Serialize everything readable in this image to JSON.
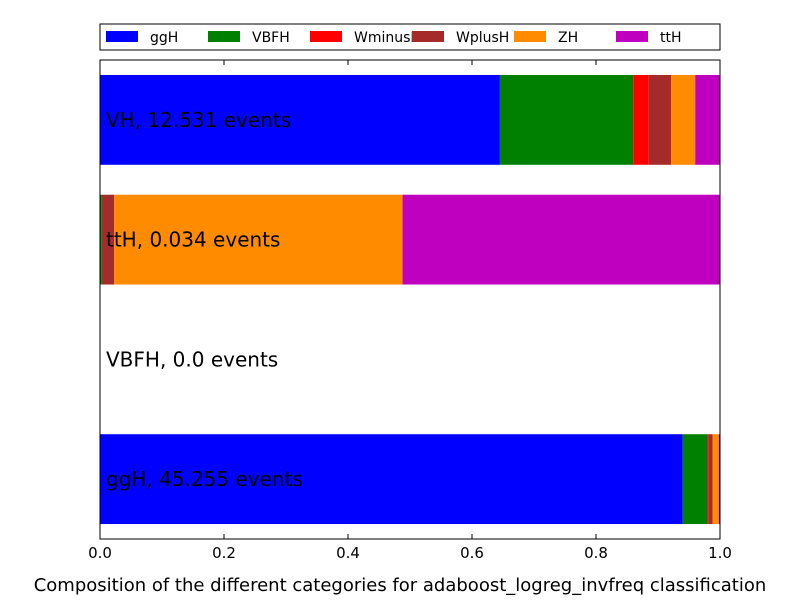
{
  "chart_data": {
    "type": "bar",
    "orientation": "horizontal",
    "stacked": true,
    "xlabel": "Composition of the different categories for adaboost_logreg_invfreq classification",
    "ylabel": "",
    "title": "",
    "xlim": [
      0,
      1.0
    ],
    "xticks": [
      "0.0",
      "0.2",
      "0.4",
      "0.6",
      "0.8",
      "1.0"
    ],
    "legend_placement": "top",
    "grid": false,
    "categories": [
      "VH, 12.531 events",
      "ttH, 0.034 events",
      "VBFH, 0.0 events",
      "ggH, 45.255 events"
    ],
    "series": [
      {
        "name": "ggH",
        "color": "#0000ff",
        "values": [
          0.645,
          0.0,
          0.0,
          0.94
        ]
      },
      {
        "name": "VBFH",
        "color": "#008000",
        "values": [
          0.215,
          0.003,
          0.0,
          0.04
        ]
      },
      {
        "name": "WminusH",
        "color": "#ff0000",
        "values": [
          0.025,
          0.0,
          0.0,
          0.002
        ]
      },
      {
        "name": "WplusH",
        "color": "#a52a2a",
        "values": [
          0.036,
          0.02,
          0.0,
          0.006
        ]
      },
      {
        "name": "ZH",
        "color": "#ff8c00",
        "values": [
          0.039,
          0.465,
          0.0,
          0.01
        ]
      },
      {
        "name": "ttH",
        "color": "#bf00bf",
        "values": [
          0.04,
          0.512,
          0.0,
          0.002
        ]
      }
    ]
  }
}
